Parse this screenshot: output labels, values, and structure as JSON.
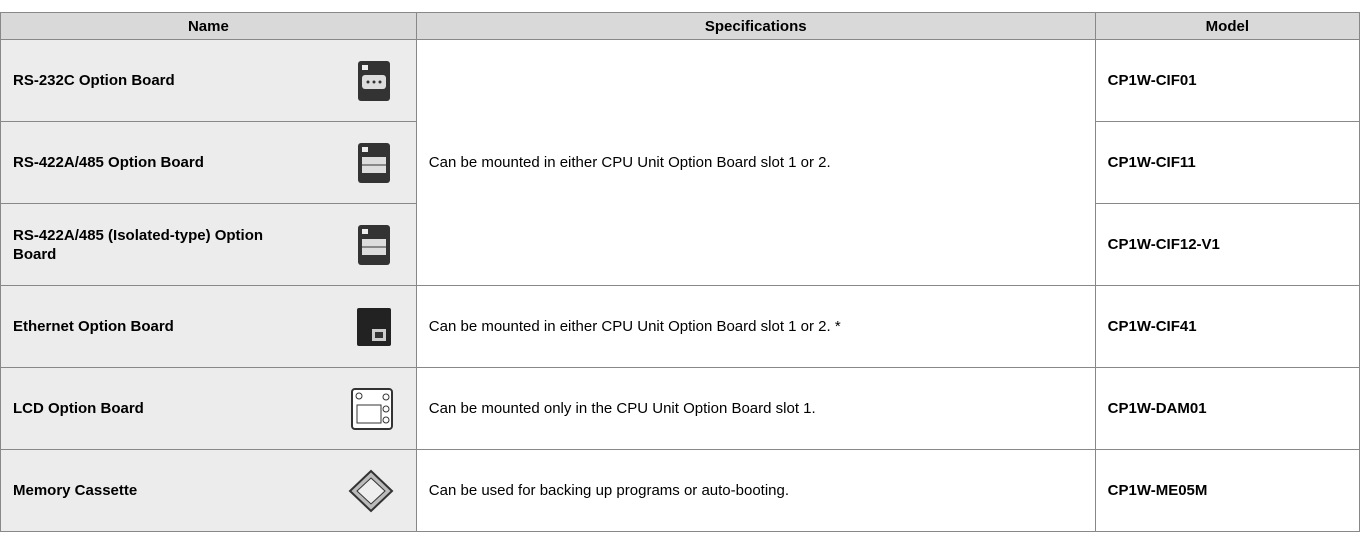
{
  "table": {
    "columns": [
      "Name",
      "Specifications",
      "Model"
    ],
    "rows": [
      {
        "name": "RS-232C Option Board",
        "spec": "Can be mounted in either CPU Unit Option Board slot 1 or 2.",
        "model": "CP1W-CIF01"
      },
      {
        "name": "RS-422A/485 Option Board",
        "model": "CP1W-CIF11"
      },
      {
        "name": "RS-422A/485 (Isolated-type) Option Board",
        "model": "CP1W-CIF12-V1"
      },
      {
        "name": "Ethernet Option Board",
        "spec": "Can be mounted in either CPU Unit Option Board slot 1 or 2. *",
        "model": "CP1W-CIF41"
      },
      {
        "name": "LCD Option Board",
        "spec": "Can be mounted only in the CPU Unit Option Board slot 1.",
        "model": "CP1W-DAM01"
      },
      {
        "name": "Memory Cassette",
        "spec": "Can be used for backing up programs or auto-booting.",
        "model": "CP1W-ME05M"
      }
    ]
  }
}
